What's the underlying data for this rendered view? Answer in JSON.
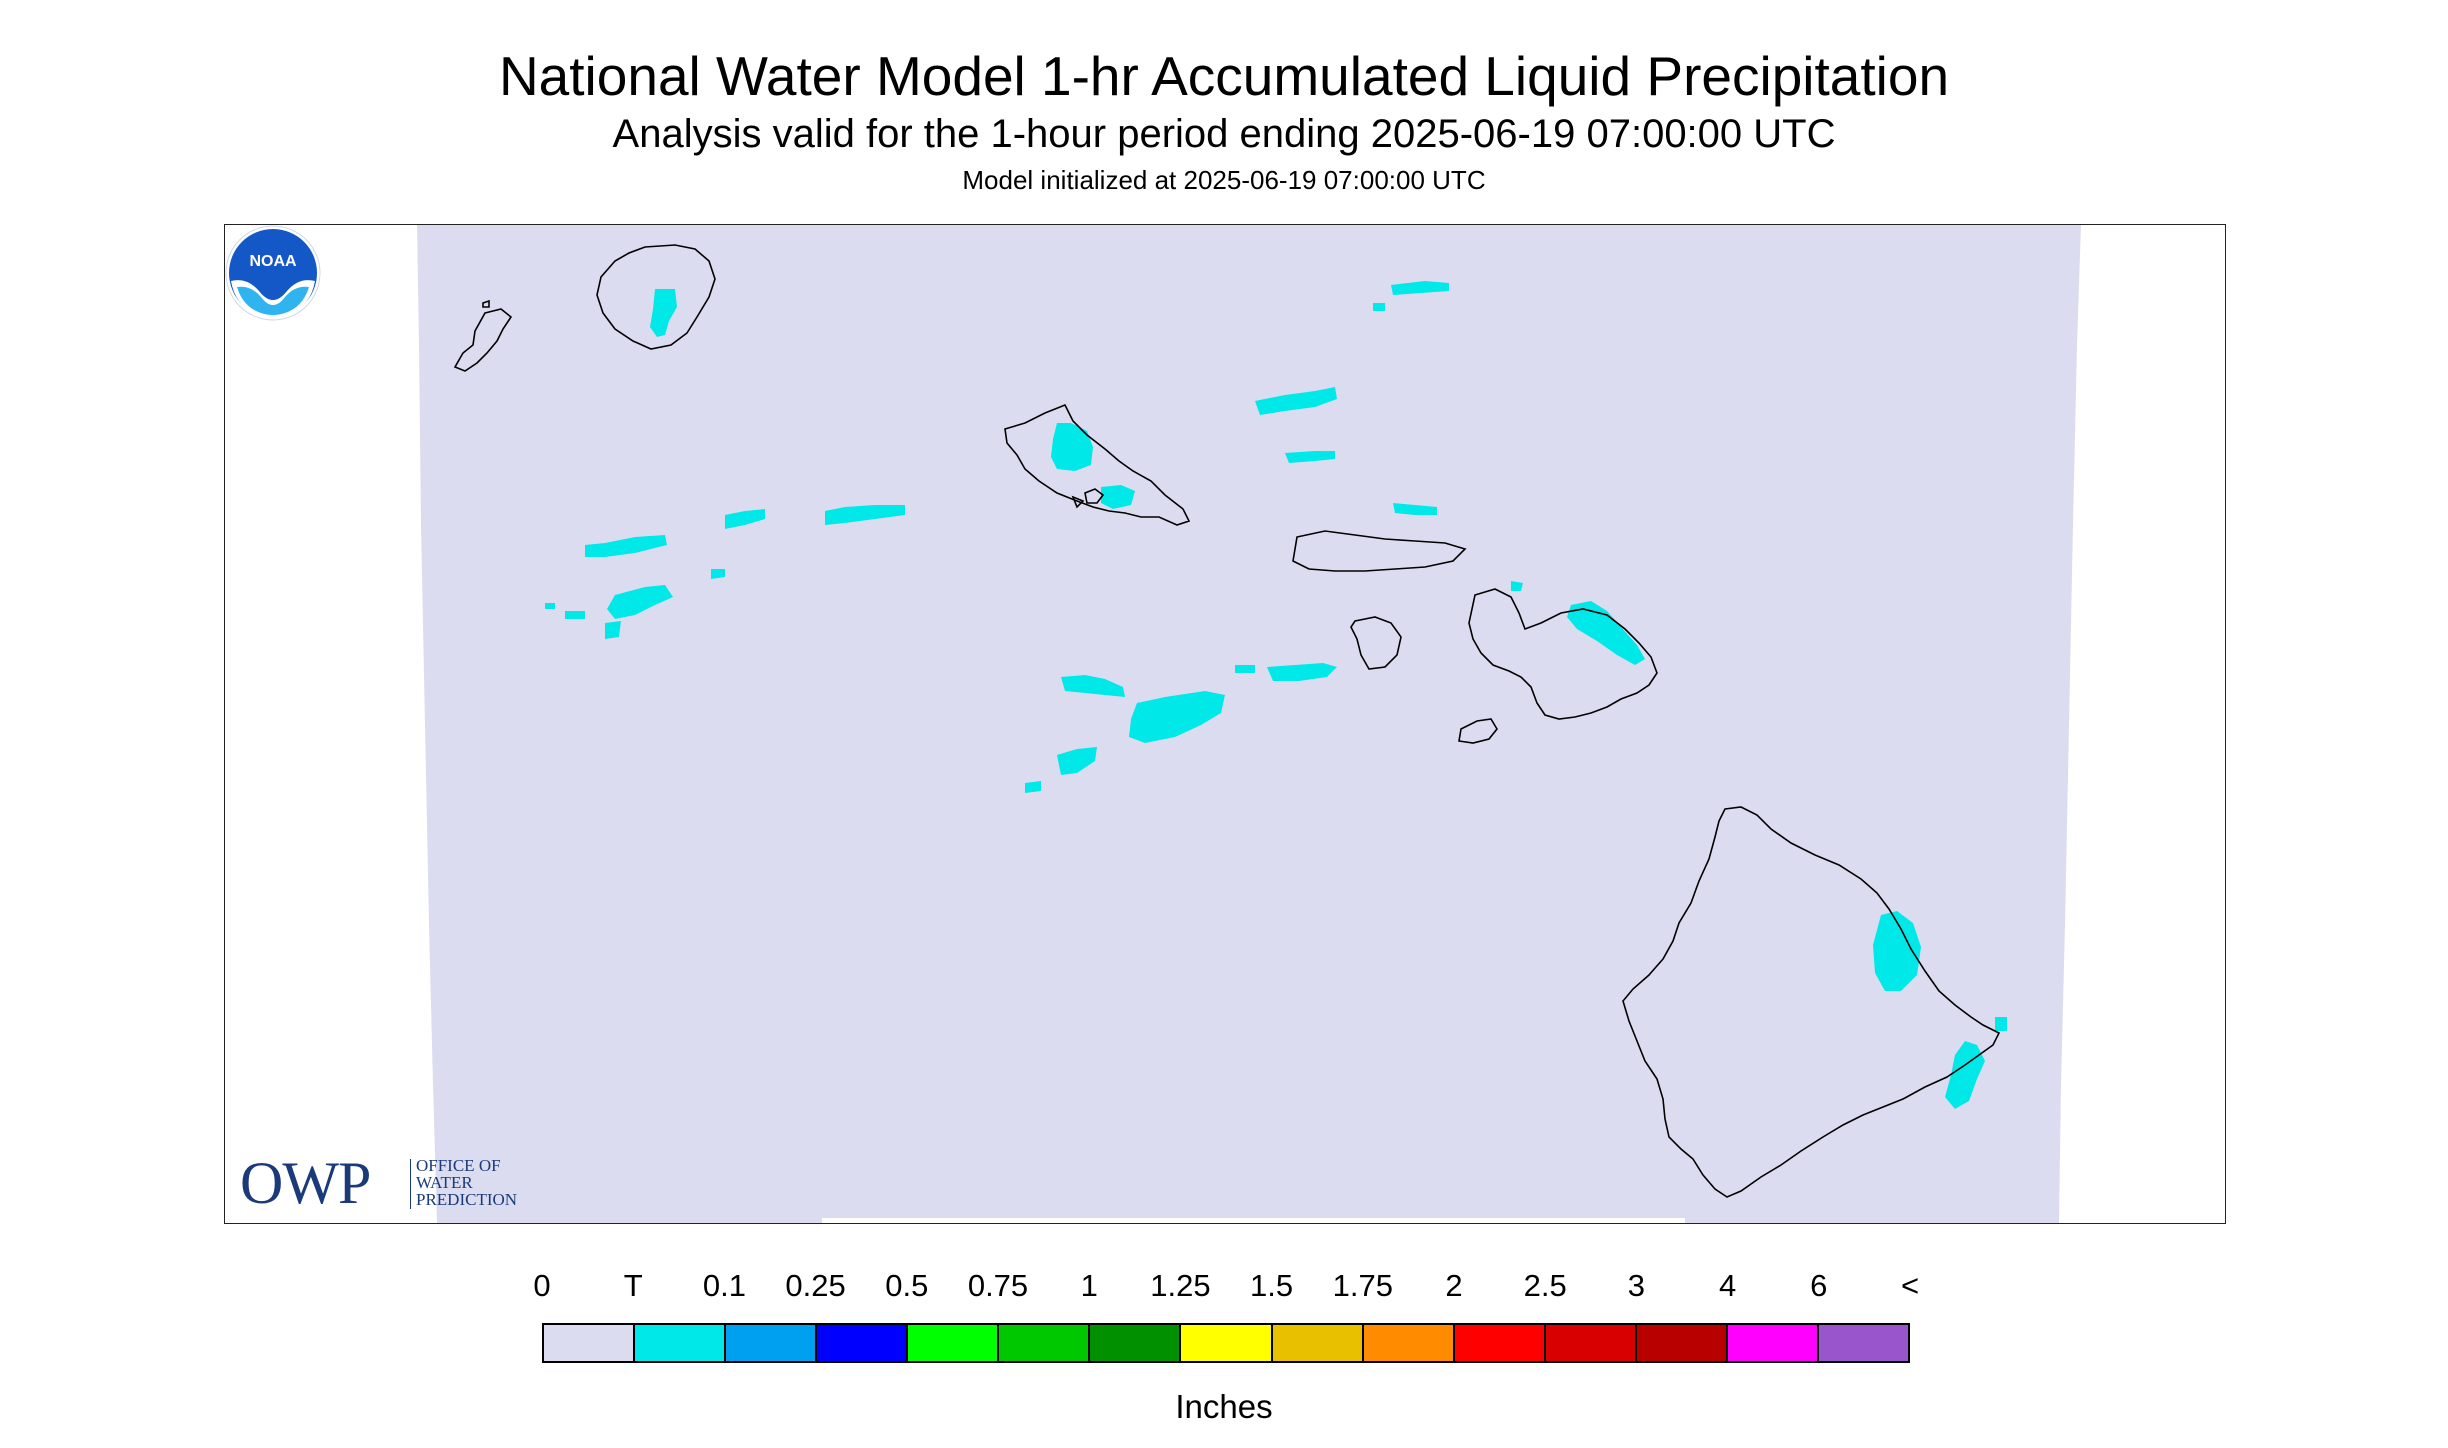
{
  "title": "National Water Model 1-hr Accumulated Liquid Precipitation",
  "subtitle": "Analysis valid for the 1-hour period ending 2025-06-19 07:00:00 UTC",
  "model_init": "Model initialized at 2025-06-19 07:00:00 UTC",
  "logos": {
    "owp_big": "OWP",
    "owp_line1": "OFFICE OF",
    "owp_line2": "WATER",
    "owp_line3": "PREDICTION",
    "noaa": "NOAA"
  },
  "legend": {
    "labels": [
      "0",
      "T",
      "0.1",
      "0.25",
      "0.5",
      "0.75",
      "1",
      "1.25",
      "1.5",
      "1.75",
      "2",
      "2.5",
      "3",
      "4",
      "6",
      "<"
    ],
    "colors": [
      "#dcdcf0",
      "#00e8e8",
      "#00a0f0",
      "#0000ff",
      "#00ff00",
      "#00c800",
      "#009000",
      "#ffff00",
      "#e8c000",
      "#ff8c00",
      "#ff0000",
      "#d80000",
      "#b80000",
      "#ff00ff",
      "#9955cc"
    ],
    "units": "Inches"
  },
  "colors": {
    "domain_fill": "#dcdcf0",
    "trace_fill": "#00e8e8",
    "coastline": "#000000"
  }
}
